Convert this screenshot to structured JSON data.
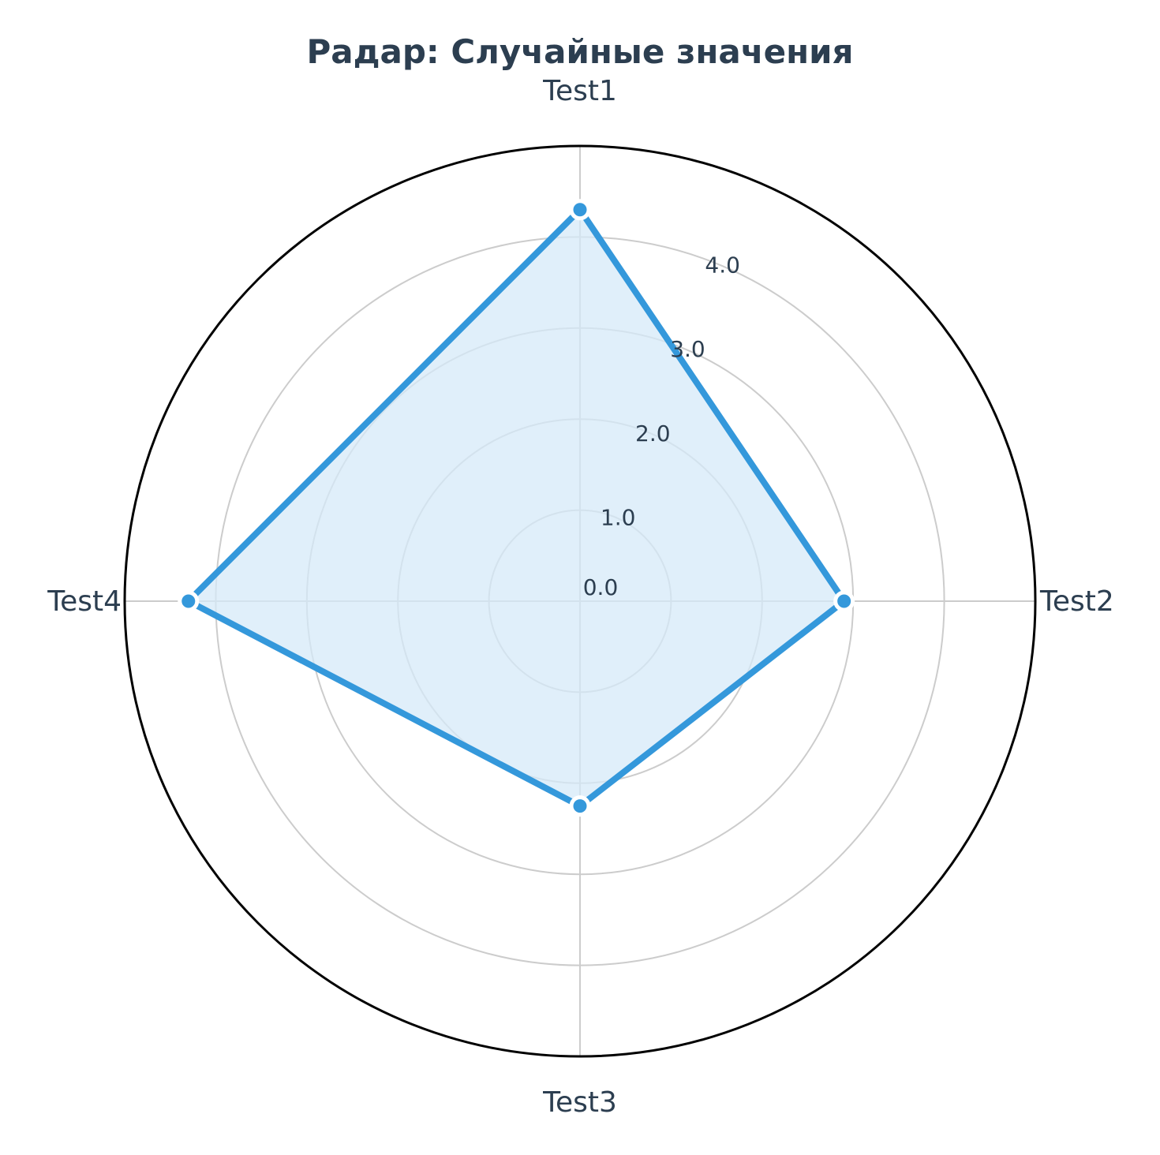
{
  "chart_data": {
    "type": "radar",
    "title": "Радар: Случайные значения",
    "categories": [
      "Test1",
      "Test2",
      "Test3",
      "Test4"
    ],
    "series": [
      {
        "values": [
          4.3,
          2.9,
          2.25,
          4.3
        ]
      }
    ],
    "rlim": [
      0,
      5
    ],
    "rticks": [
      0,
      1,
      2,
      3,
      4
    ],
    "rtick_labels": [
      "0.0",
      "1.0",
      "2.0",
      "3.0",
      "4.0"
    ],
    "grid": true,
    "colors": {
      "line": "#3498db",
      "fill": "#d6e9f8",
      "grid": "#cccccc",
      "outline": "#000000",
      "text": "#2c3e50"
    }
  }
}
